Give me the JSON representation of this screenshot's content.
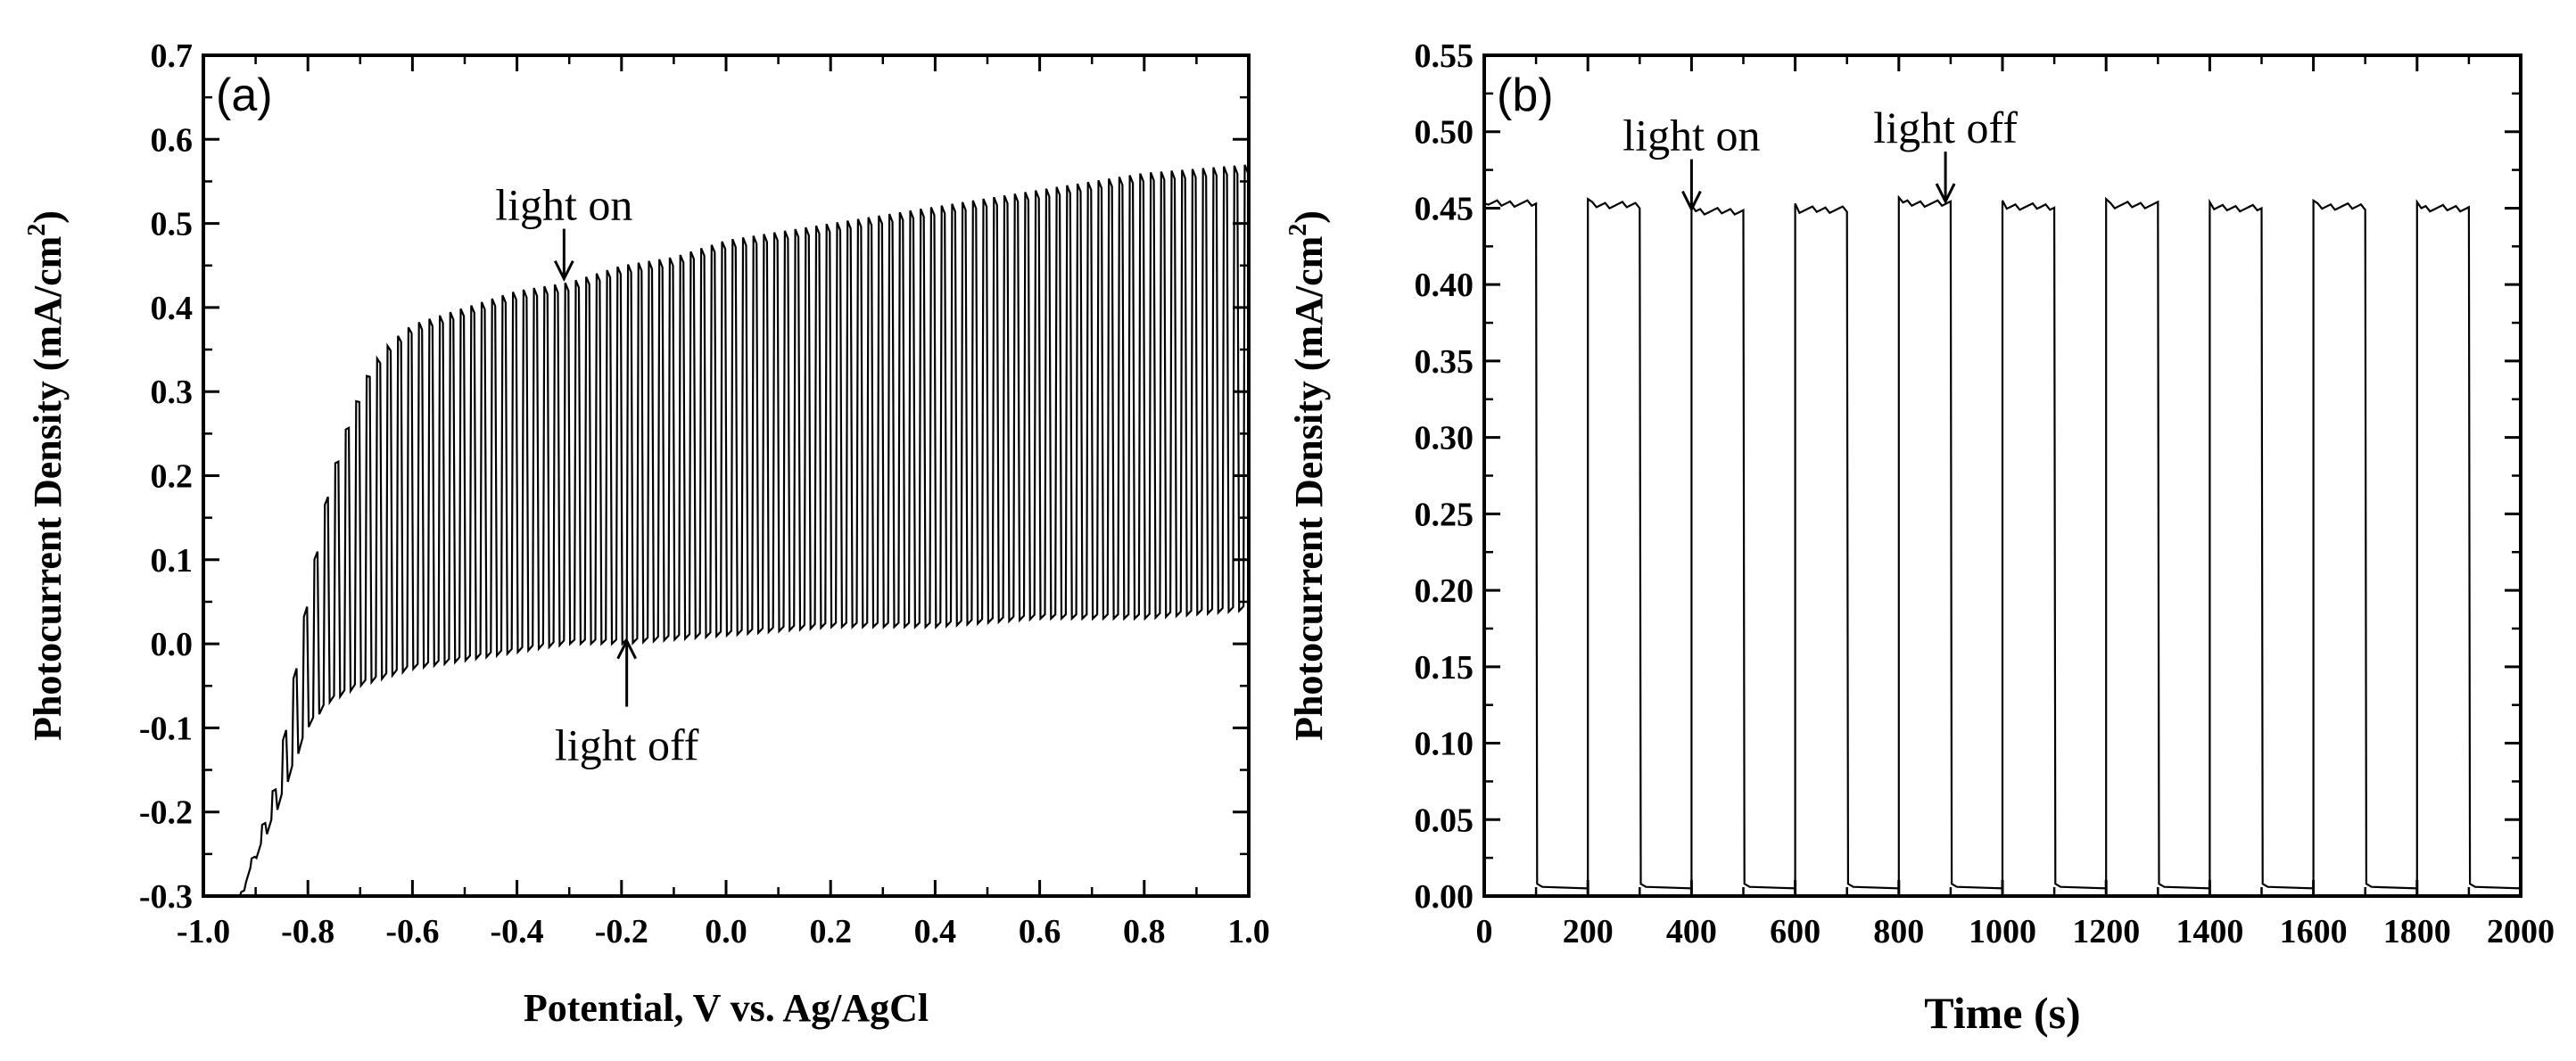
{
  "chart_data": [
    {
      "panel_label": "(a)",
      "type": "line",
      "xlabel": "Potential, V vs. Ag/AgCl",
      "ylabel": "Photocurrent Density (mA/cm",
      "ylabel_sup": "2",
      "ylabel_close": ")",
      "xlim": [
        -1.0,
        1.0
      ],
      "ylim": [
        -0.3,
        0.7
      ],
      "xticks": [
        -1.0,
        -0.8,
        -0.6,
        -0.4,
        -0.2,
        0.0,
        0.2,
        0.4,
        0.6,
        0.8,
        1.0
      ],
      "xtick_labels": [
        "-1.0",
        "-0.8",
        "-0.6",
        "-0.4",
        "-0.2",
        "0.0",
        "0.2",
        "0.4",
        "0.6",
        "0.8",
        "1.0"
      ],
      "yticks": [
        -0.3,
        -0.2,
        -0.1,
        0.0,
        0.1,
        0.2,
        0.3,
        0.4,
        0.5,
        0.6,
        0.7
      ],
      "ytick_labels": [
        "-0.3",
        "-0.2",
        "-0.1",
        "0.0",
        "0.1",
        "0.2",
        "0.3",
        "0.4",
        "0.5",
        "0.6",
        "0.7"
      ],
      "chopped_envelope": {
        "x_start": -0.93,
        "x_end": 1.0,
        "cycle_period_V": 0.02,
        "light_on_envelope": [
          [
            -0.93,
            -0.3
          ],
          [
            -0.86,
            -0.16
          ],
          [
            -0.8,
            0.06
          ],
          [
            -0.76,
            0.19
          ],
          [
            -0.72,
            0.27
          ],
          [
            -0.68,
            0.33
          ],
          [
            -0.64,
            0.36
          ],
          [
            -0.6,
            0.38
          ],
          [
            -0.5,
            0.4
          ],
          [
            -0.4,
            0.42
          ],
          [
            -0.3,
            0.43
          ],
          [
            -0.2,
            0.45
          ],
          [
            -0.1,
            0.46
          ],
          [
            0.0,
            0.48
          ],
          [
            0.2,
            0.5
          ],
          [
            0.4,
            0.52
          ],
          [
            0.6,
            0.54
          ],
          [
            0.8,
            0.56
          ],
          [
            1.0,
            0.57
          ]
        ],
        "light_off_envelope": [
          [
            -0.93,
            -0.3
          ],
          [
            -0.86,
            -0.2
          ],
          [
            -0.8,
            -0.1
          ],
          [
            -0.76,
            -0.07
          ],
          [
            -0.7,
            -0.05
          ],
          [
            -0.6,
            -0.03
          ],
          [
            -0.5,
            -0.02
          ],
          [
            -0.4,
            -0.01
          ],
          [
            -0.3,
            0.0
          ],
          [
            -0.2,
            0.0
          ],
          [
            0.0,
            0.01
          ],
          [
            0.2,
            0.02
          ],
          [
            0.4,
            0.02
          ],
          [
            0.6,
            0.03
          ],
          [
            0.8,
            0.03
          ],
          [
            1.0,
            0.04
          ]
        ]
      },
      "annotations": [
        {
          "text": "light on",
          "x": -0.31,
          "y": 0.43,
          "position": "above"
        },
        {
          "text": "light off",
          "x": -0.19,
          "y": 0.01,
          "position": "below"
        }
      ]
    },
    {
      "panel_label": "(b)",
      "type": "line",
      "xlabel": "Time (s)",
      "ylabel": "Photocurrent Density (mA/cm",
      "ylabel_sup": "2",
      "ylabel_close": ")",
      "xlim": [
        0,
        2000
      ],
      "ylim": [
        0.0,
        0.55
      ],
      "xticks": [
        0,
        200,
        400,
        600,
        800,
        1000,
        1200,
        1400,
        1600,
        1800,
        2000
      ],
      "xtick_labels": [
        "0",
        "200",
        "400",
        "600",
        "800",
        "1000",
        "1200",
        "1400",
        "1600",
        "1800",
        "2000"
      ],
      "yticks": [
        0.0,
        0.05,
        0.1,
        0.15,
        0.2,
        0.25,
        0.3,
        0.35,
        0.4,
        0.45,
        0.5,
        0.55
      ],
      "ytick_labels": [
        "0.00",
        "0.05",
        "0.10",
        "0.15",
        "0.20",
        "0.25",
        "0.30",
        "0.35",
        "0.40",
        "0.45",
        "0.50",
        "0.55"
      ],
      "on_off_cycles": {
        "period_s": 200,
        "on_duration_s": 100,
        "cycles": 10,
        "on_level": [
          0.453,
          0.452,
          0.448,
          0.449,
          0.453,
          0.451,
          0.452,
          0.45,
          0.451,
          0.45
        ],
        "off_level": 0.005
      },
      "annotations": [
        {
          "text": "light on",
          "x": 400,
          "y": 0.447,
          "position": "above"
        },
        {
          "text": "light off",
          "x": 890,
          "y": 0.452,
          "position": "above"
        }
      ]
    }
  ]
}
